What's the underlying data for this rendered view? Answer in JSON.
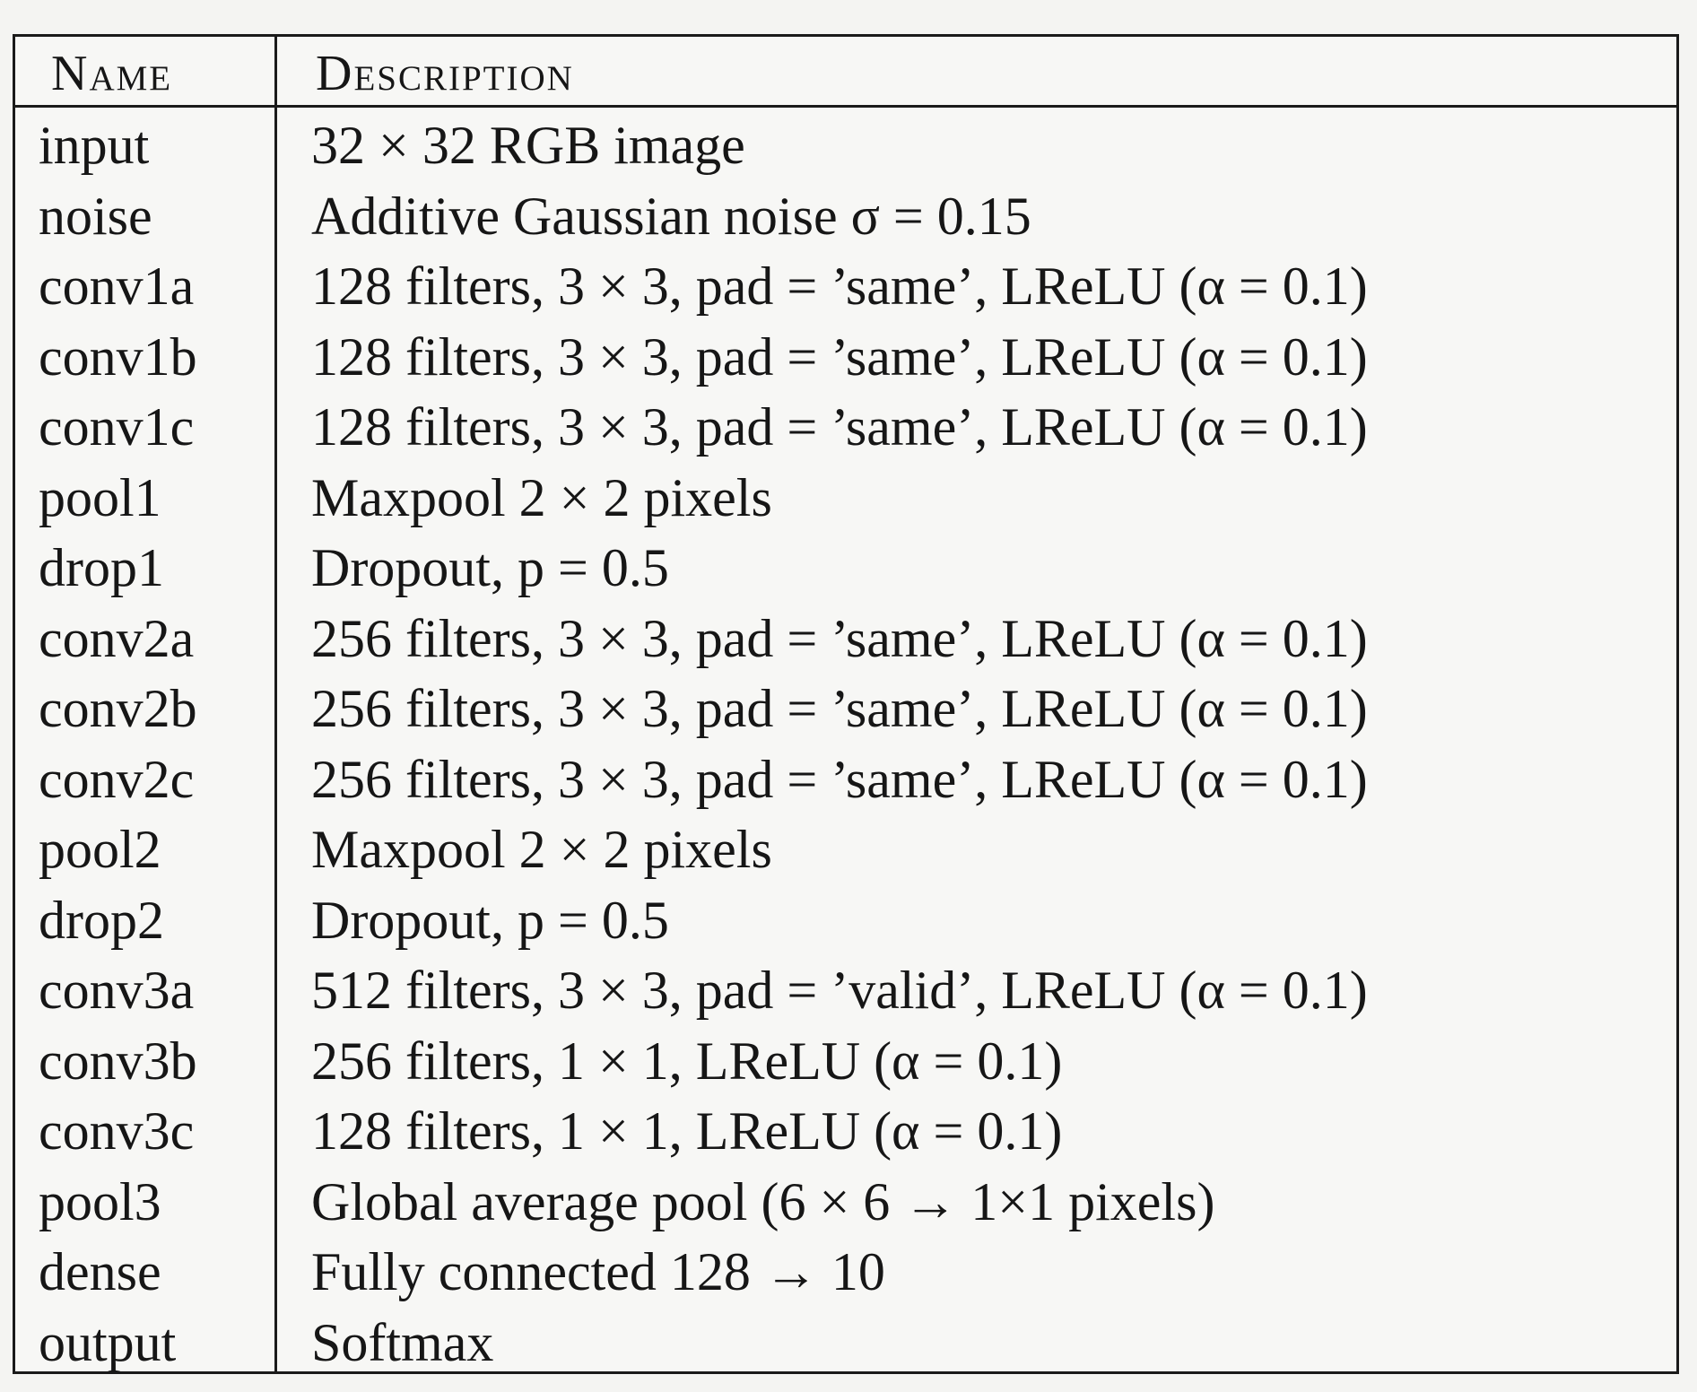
{
  "table": {
    "headers": {
      "name": "Name",
      "description": "Description"
    },
    "rows": [
      {
        "name": "input",
        "description": "32 × 32 RGB image"
      },
      {
        "name": "noise",
        "description": "Additive Gaussian noise σ = 0.15"
      },
      {
        "name": "conv1a",
        "description": "128 filters, 3 × 3, pad = ’same’, LReLU (α = 0.1)"
      },
      {
        "name": "conv1b",
        "description": "128 filters, 3 × 3, pad = ’same’, LReLU (α = 0.1)"
      },
      {
        "name": "conv1c",
        "description": "128 filters, 3 × 3, pad = ’same’, LReLU (α = 0.1)"
      },
      {
        "name": "pool1",
        "description": "Maxpool 2 × 2 pixels"
      },
      {
        "name": "drop1",
        "description": "Dropout, p = 0.5"
      },
      {
        "name": "conv2a",
        "description": "256 filters, 3 × 3, pad = ’same’, LReLU (α = 0.1)"
      },
      {
        "name": "conv2b",
        "description": "256 filters, 3 × 3, pad = ’same’, LReLU (α = 0.1)"
      },
      {
        "name": "conv2c",
        "description": "256 filters, 3 × 3, pad = ’same’, LReLU (α = 0.1)"
      },
      {
        "name": "pool2",
        "description": "Maxpool 2 × 2 pixels"
      },
      {
        "name": "drop2",
        "description": "Dropout, p = 0.5"
      },
      {
        "name": "conv3a",
        "description": "512 filters, 3 × 3, pad = ’valid’, LReLU (α = 0.1)"
      },
      {
        "name": "conv3b",
        "description": "256 filters, 1 × 1, LReLU (α = 0.1)"
      },
      {
        "name": "conv3c",
        "description": "128 filters, 1 × 1, LReLU (α = 0.1)"
      },
      {
        "name": "pool3",
        "description": "Global average pool (6 × 6 → 1×1 pixels)"
      },
      {
        "name": "dense",
        "description": "Fully connected 128 → 10"
      },
      {
        "name": "output",
        "description": "Softmax"
      }
    ]
  }
}
